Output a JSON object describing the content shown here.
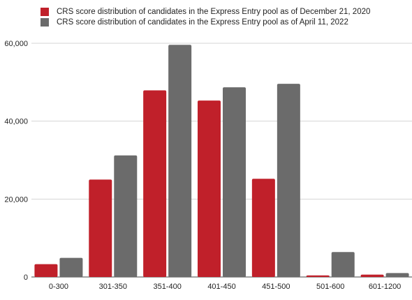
{
  "chart_data": {
    "type": "bar",
    "categories": [
      "0-300",
      "301-350",
      "351-400",
      "401-450",
      "451-500",
      "501-600",
      "601-1200"
    ],
    "series": [
      {
        "name": "CRS score distribution of candidates in the Express Entry pool as of December 21, 2020",
        "color": "#c0202a",
        "values": [
          3300,
          25000,
          47900,
          45300,
          25200,
          400,
          600
        ]
      },
      {
        "name": "CRS score distribution of candidates in the Express Entry pool as of April 11, 2022",
        "color": "#6b6b6b",
        "values": [
          4900,
          31200,
          59600,
          48700,
          49600,
          6400,
          1000
        ]
      }
    ],
    "ylim": [
      0,
      60000
    ],
    "yticks": [
      0,
      20000,
      40000,
      60000
    ],
    "ytick_labels": [
      "0",
      "20,000",
      "40,000",
      "60,000"
    ],
    "grid": true,
    "legend_position": "top-left",
    "title": "",
    "xlabel": "",
    "ylabel": ""
  }
}
